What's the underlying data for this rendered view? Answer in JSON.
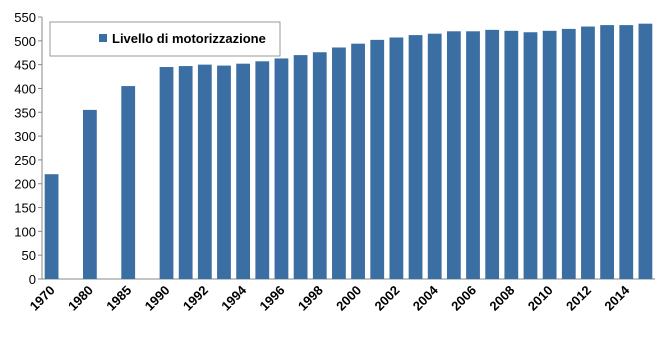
{
  "chart_data": {
    "type": "bar",
    "categories": [
      "1970",
      null,
      "1980",
      null,
      "1985",
      null,
      "1990",
      null,
      "1992",
      null,
      "1994",
      null,
      "1996",
      null,
      "1998",
      null,
      "2000",
      null,
      "2002",
      null,
      "2004",
      null,
      "2006",
      null,
      "2008",
      null,
      "2010",
      null,
      "2012",
      null,
      "2014",
      null
    ],
    "series": [
      {
        "name": "Livello di motorizzazione",
        "color": "#3b6fa3",
        "values": [
          220,
          null,
          355,
          null,
          405,
          null,
          445,
          447,
          450,
          448,
          452,
          457,
          463,
          470,
          476,
          486,
          494,
          502,
          507,
          512,
          515,
          520,
          520,
          523,
          521,
          518,
          521,
          525,
          530,
          533,
          533,
          536
        ]
      }
    ],
    "ylim": [
      0,
      550
    ],
    "yticks": [
      0,
      50,
      100,
      150,
      200,
      250,
      300,
      350,
      400,
      450,
      500,
      550
    ],
    "legend": "top-left"
  }
}
